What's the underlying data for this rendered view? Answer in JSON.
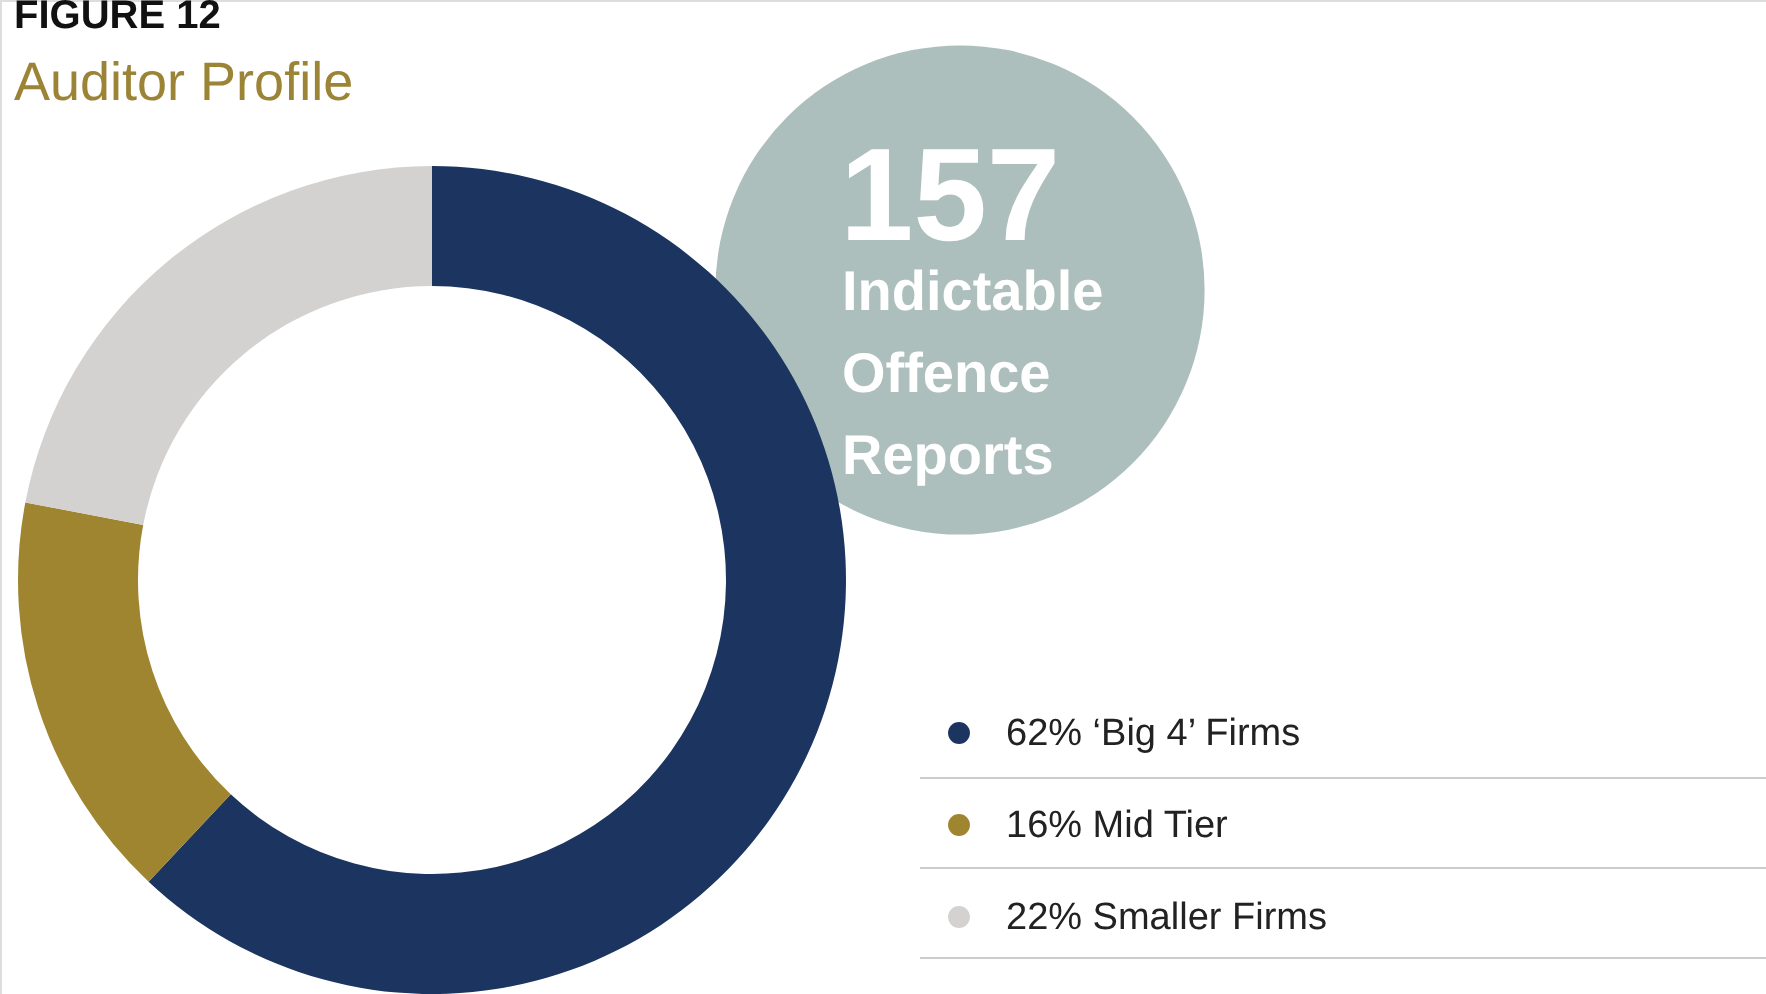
{
  "chart_data": {
    "type": "donut",
    "title": "FIGURE 12",
    "subtitle": "Auditor Profile",
    "categories": [
      "‘Big 4’ Firms",
      "Mid Tier",
      "Smaller Firms"
    ],
    "values": [
      62,
      16,
      22
    ],
    "value_labels": [
      "62%",
      "16%",
      "22%"
    ],
    "colors": [
      "#1c3560",
      "#a08530",
      "#d3d2d0"
    ],
    "annotations": [
      "157",
      "Indictable Offence Reports"
    ],
    "legend": "bottom right"
  }
}
